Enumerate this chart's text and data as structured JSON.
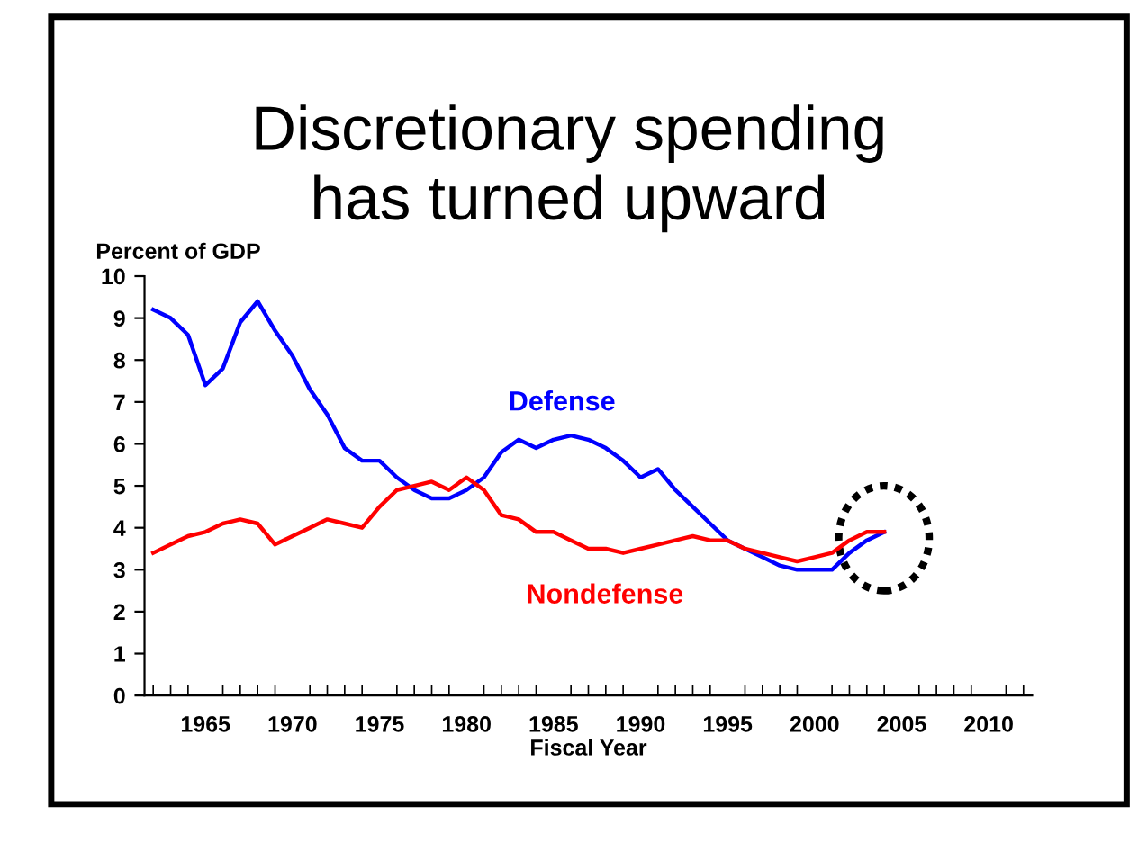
{
  "chart_data": {
    "type": "line",
    "title": "Discretionary spending\nhas turned upward",
    "xlabel": "Fiscal Year",
    "ylabel": "Percent of GDP",
    "x": [
      1962,
      1963,
      1964,
      1965,
      1966,
      1967,
      1968,
      1969,
      1970,
      1971,
      1972,
      1973,
      1974,
      1975,
      1976,
      1977,
      1978,
      1979,
      1980,
      1981,
      1982,
      1983,
      1984,
      1985,
      1986,
      1987,
      1988,
      1989,
      1990,
      1991,
      1992,
      1993,
      1994,
      1995,
      1996,
      1997,
      1998,
      1999,
      2000,
      2001,
      2002,
      2003,
      2004
    ],
    "series": [
      {
        "name": "Defense",
        "color": "#0000ff",
        "values": [
          9.2,
          9.0,
          8.6,
          7.4,
          7.8,
          8.9,
          9.4,
          8.7,
          8.1,
          7.3,
          6.7,
          5.9,
          5.6,
          5.6,
          5.2,
          4.9,
          4.7,
          4.7,
          4.9,
          5.2,
          5.8,
          6.1,
          5.9,
          6.1,
          6.2,
          6.1,
          5.9,
          5.6,
          5.2,
          5.4,
          4.9,
          4.5,
          4.1,
          3.7,
          3.5,
          3.3,
          3.1,
          3.0,
          3.0,
          3.0,
          3.4,
          3.7,
          3.9
        ]
      },
      {
        "name": "Nondefense",
        "color": "#ff0000",
        "values": [
          3.4,
          3.6,
          3.8,
          3.9,
          4.1,
          4.2,
          4.1,
          3.6,
          3.8,
          4.0,
          4.2,
          4.1,
          4.0,
          4.5,
          4.9,
          5.0,
          5.1,
          4.9,
          5.2,
          4.9,
          4.3,
          4.2,
          3.9,
          3.9,
          3.7,
          3.5,
          3.5,
          3.4,
          3.5,
          3.6,
          3.7,
          3.8,
          3.7,
          3.7,
          3.5,
          3.4,
          3.3,
          3.2,
          3.3,
          3.4,
          3.7,
          3.9,
          3.9
        ]
      }
    ],
    "xlim": [
      1961.5,
      2012.5
    ],
    "xticks": [
      1965,
      1970,
      1975,
      1980,
      1985,
      1990,
      1995,
      2000,
      2005,
      2010
    ],
    "ylim": [
      0,
      10
    ],
    "yticks": [
      0,
      1,
      2,
      3,
      4,
      5,
      6,
      7,
      8,
      9,
      10
    ],
    "grid": false,
    "legend": false,
    "marker": "none",
    "line_style": "solid"
  }
}
